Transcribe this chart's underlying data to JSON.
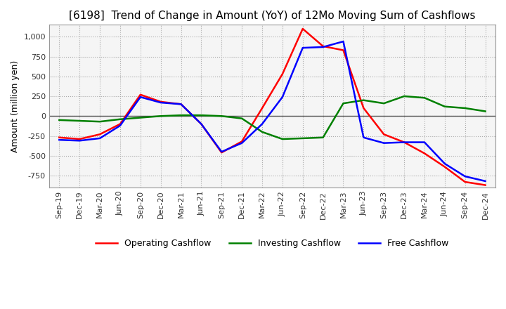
{
  "title": "[6198]  Trend of Change in Amount (YoY) of 12Mo Moving Sum of Cashflows",
  "ylabel": "Amount (million yen)",
  "x_labels": [
    "Sep-19",
    "Dec-19",
    "Mar-20",
    "Jun-20",
    "Sep-20",
    "Dec-20",
    "Mar-21",
    "Jun-21",
    "Sep-21",
    "Dec-21",
    "Mar-22",
    "Jun-22",
    "Sep-22",
    "Dec-22",
    "Mar-23",
    "Jun-23",
    "Sep-23",
    "Dec-23",
    "Mar-24",
    "Jun-24",
    "Sep-24",
    "Dec-24"
  ],
  "operating": [
    -270,
    -290,
    -230,
    -100,
    270,
    180,
    150,
    -100,
    -460,
    -320,
    100,
    530,
    1100,
    880,
    830,
    100,
    -230,
    -330,
    -470,
    -640,
    -830,
    -870
  ],
  "investing": [
    -50,
    -60,
    -70,
    -40,
    -20,
    0,
    10,
    10,
    0,
    -30,
    -200,
    -290,
    -280,
    -270,
    160,
    200,
    160,
    250,
    230,
    120,
    100,
    60
  ],
  "free": [
    -300,
    -310,
    -280,
    -120,
    240,
    170,
    150,
    -100,
    -450,
    -340,
    -100,
    240,
    860,
    870,
    940,
    -270,
    -340,
    -330,
    -330,
    -600,
    -760,
    -820
  ],
  "ylim": [
    -900,
    1150
  ],
  "yticks": [
    -750,
    -500,
    -250,
    0,
    250,
    500,
    750,
    1000
  ],
  "op_color": "#ff0000",
  "inv_color": "#008000",
  "free_color": "#0000ff",
  "bg_color": "#ffffff",
  "plot_bg_color": "#f5f5f5",
  "grid_color": "#aaaaaa",
  "title_fontsize": 11,
  "axis_fontsize": 8,
  "legend_fontsize": 9
}
